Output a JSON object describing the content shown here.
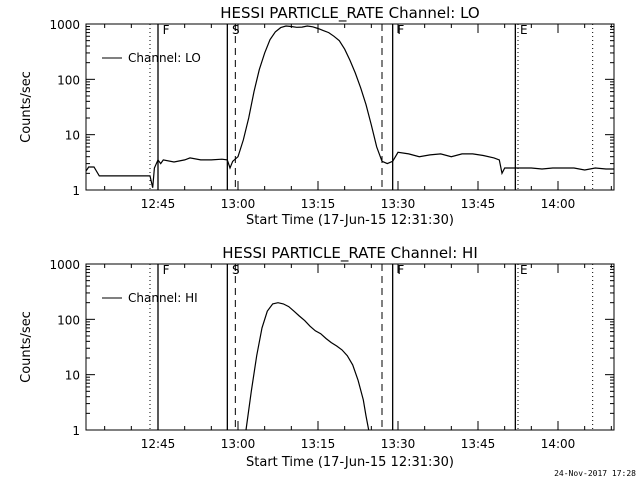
{
  "footer_timestamp": "24-Nov-2017 17:28",
  "colors": {
    "foreground": "#000000",
    "background": "#ffffff"
  },
  "chart_data": [
    {
      "type": "line",
      "title": "HESSI PARTICLE_RATE Channel: LO",
      "xlabel": "Start Time (17-Jun-15 12:31:30)",
      "ylabel": "Counts/sec",
      "y_scale": "log",
      "ylim": [
        1,
        1000
      ],
      "xlim": [
        "12:31:30",
        "14:10:30"
      ],
      "x_ticks": [
        "12:45",
        "13:00",
        "13:15",
        "13:30",
        "13:45",
        "14:00"
      ],
      "y_ticks": [
        "1",
        "10",
        "100",
        "1000"
      ],
      "legend": "top-left",
      "grid": false,
      "series": [
        {
          "name": "Channel: LO",
          "x": [
            "12:31:30",
            "12:32:00",
            "12:33:00",
            "12:34:00",
            "12:35:00",
            "12:38:00",
            "12:42:00",
            "12:43:30",
            "12:44:00",
            "12:44:20",
            "12:45:00",
            "12:45:30",
            "12:46:00",
            "12:48:00",
            "12:50:00",
            "12:51:00",
            "12:53:00",
            "12:55:00",
            "12:57:00",
            "12:58:00",
            "12:58:30",
            "12:59:00",
            "13:00:00",
            "13:01:00",
            "13:02:00",
            "13:03:00",
            "13:04:00",
            "13:05:00",
            "13:06:00",
            "13:07:00",
            "13:08:00",
            "13:09:00",
            "13:10:00",
            "13:11:00",
            "13:12:00",
            "13:13:00",
            "13:14:00",
            "13:15:00",
            "13:16:00",
            "13:17:00",
            "13:18:00",
            "13:19:00",
            "13:20:00",
            "13:21:00",
            "13:22:00",
            "13:23:00",
            "13:24:00",
            "13:25:00",
            "13:26:00",
            "13:27:00",
            "13:28:00",
            "13:29:00",
            "13:30:00",
            "13:32:00",
            "13:34:00",
            "13:36:00",
            "13:38:00",
            "13:40:00",
            "13:42:00",
            "13:44:00",
            "13:46:00",
            "13:48:00",
            "13:49:00",
            "13:49:30",
            "13:50:00",
            "13:51:00",
            "13:53:00",
            "13:55:00",
            "13:57:00",
            "13:59:00",
            "14:01:00",
            "14:03:00",
            "14:05:00",
            "14:07:00",
            "14:09:00",
            "14:10:30"
          ],
          "values": [
            2.2,
            2.6,
            2.6,
            1.8,
            1.8,
            1.8,
            1.8,
            1.8,
            1.1,
            2.5,
            3.5,
            3.0,
            3.5,
            3.2,
            3.5,
            3.8,
            3.5,
            3.5,
            3.6,
            3.5,
            2.5,
            3.3,
            4.0,
            8.0,
            20,
            60,
            150,
            300,
            520,
            720,
            860,
            920,
            900,
            870,
            880,
            920,
            890,
            830,
            760,
            700,
            600,
            500,
            350,
            220,
            130,
            70,
            35,
            15,
            6,
            3.3,
            3.0,
            3.3,
            4.8,
            4.5,
            4.0,
            4.3,
            4.5,
            4.0,
            4.5,
            4.5,
            4.2,
            3.8,
            3.5,
            2.0,
            2.5,
            2.5,
            2.5,
            2.5,
            2.4,
            2.5,
            2.5,
            2.5,
            2.3,
            2.5,
            2.4,
            2.4
          ]
        }
      ],
      "annotations": [
        "F",
        "S",
        "F",
        "E"
      ]
    },
    {
      "type": "line",
      "title": "HESSI PARTICLE_RATE Channel: HI",
      "xlabel": "Start Time (17-Jun-15 12:31:30)",
      "ylabel": "Counts/sec",
      "y_scale": "log",
      "ylim": [
        1,
        1000
      ],
      "xlim": [
        "12:31:30",
        "14:10:30"
      ],
      "x_ticks": [
        "12:45",
        "13:00",
        "13:15",
        "13:30",
        "13:45",
        "14:00"
      ],
      "y_ticks": [
        "1",
        "10",
        "100",
        "1000"
      ],
      "legend": "top-left",
      "grid": false,
      "series": [
        {
          "name": "Channel: HI",
          "x": [
            "13:01:30",
            "13:02:30",
            "13:03:30",
            "13:04:30",
            "13:05:30",
            "13:06:30",
            "13:07:30",
            "13:08:30",
            "13:09:30",
            "13:10:30",
            "13:11:30",
            "13:12:30",
            "13:13:30",
            "13:14:30",
            "13:15:30",
            "13:16:30",
            "13:17:30",
            "13:18:30",
            "13:19:30",
            "13:20:30",
            "13:21:30",
            "13:22:30",
            "13:23:30",
            "13:24:00",
            "13:24:30"
          ],
          "values": [
            1.0,
            5,
            22,
            70,
            140,
            190,
            200,
            190,
            170,
            140,
            115,
            95,
            75,
            62,
            55,
            45,
            38,
            33,
            28,
            22,
            15,
            8,
            3.5,
            1.8,
            1.0
          ]
        }
      ],
      "annotations": [
        "F",
        "S",
        "F",
        "E"
      ]
    }
  ]
}
